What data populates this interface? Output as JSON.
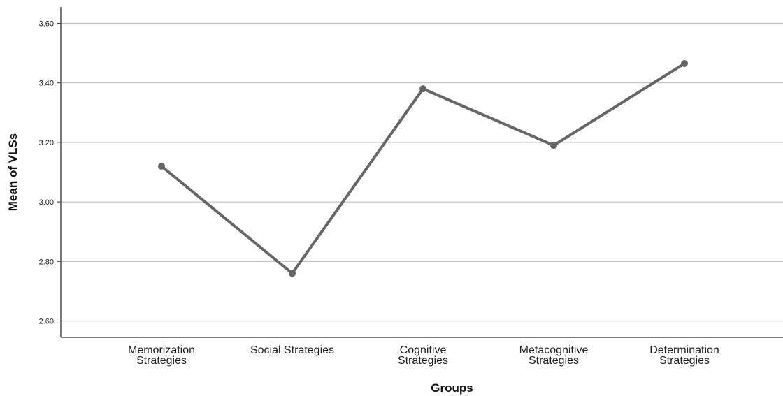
{
  "chart_data": {
    "type": "line",
    "title": "",
    "xlabel": "Groups",
    "ylabel": "Mean of VLSs",
    "categories": [
      [
        "Memorization",
        "Strategies"
      ],
      [
        "Social Strategies"
      ],
      [
        "Cognitive",
        "Strategies"
      ],
      [
        "Metacognitive",
        "Strategies"
      ],
      [
        "Determination",
        "Strategies"
      ]
    ],
    "series": [
      {
        "values": [
          3.12,
          2.76,
          3.38,
          3.19,
          3.465
        ]
      }
    ],
    "ylim": [
      2.545,
      3.655
    ],
    "yticks": [
      "2.60",
      "2.80",
      "3.00",
      "3.20",
      "3.40",
      "3.60"
    ],
    "grid": true,
    "legend": "none",
    "colors": {
      "line": "#666666",
      "grid": "#c8c8c8",
      "axis": "#333333"
    }
  }
}
